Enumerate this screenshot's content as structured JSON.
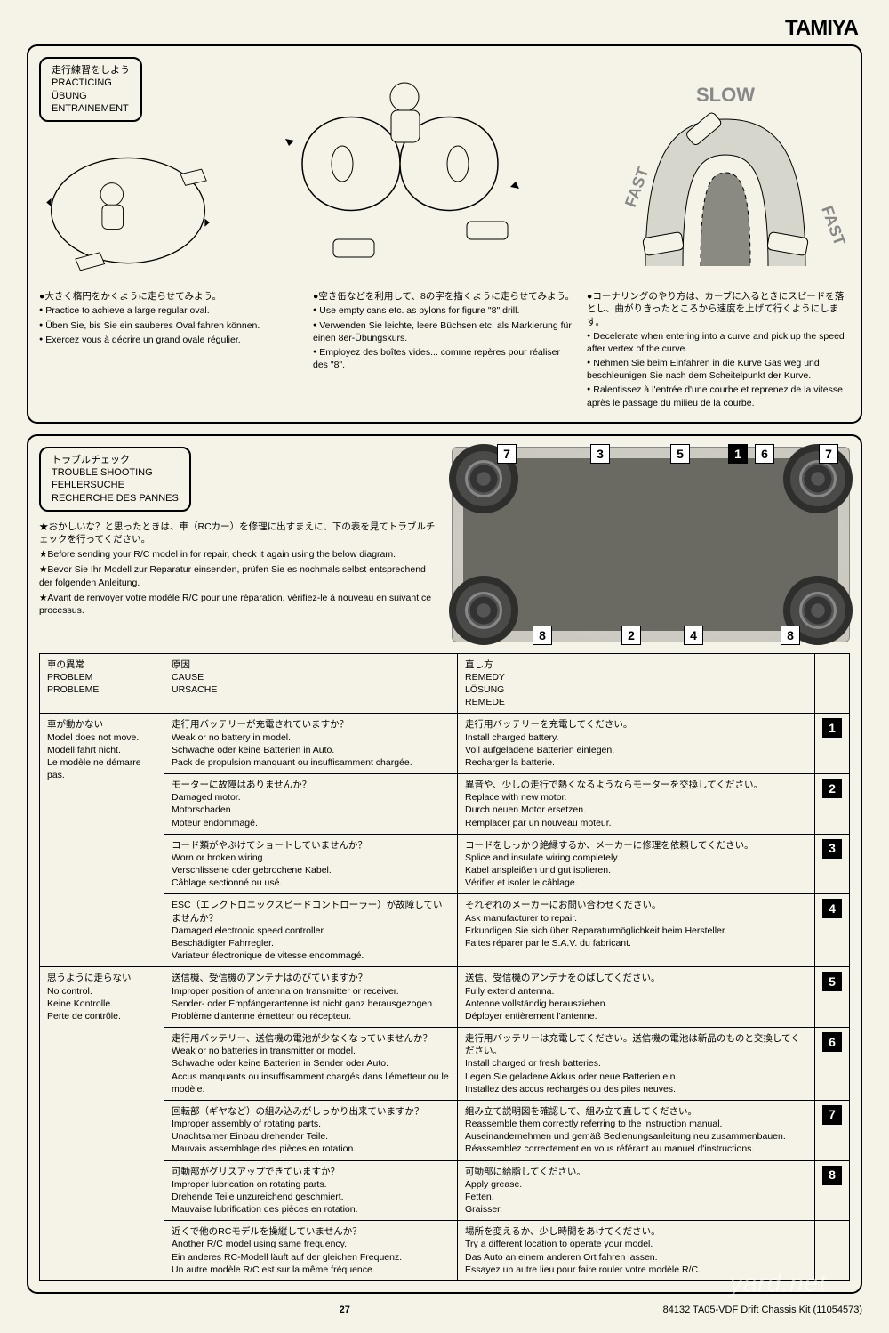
{
  "brand": "TAMIYA",
  "practice": {
    "title_jp": "走行練習をしよう",
    "title_en": "PRACTICING",
    "title_de": "ÜBUNG",
    "title_fr": "ENTRAINEMENT",
    "slow_label": "SLOW",
    "fast_label_l": "FAST",
    "fast_label_r": "FAST",
    "col1": {
      "jp": "●大きく楕円をかくように走らせてみよう。",
      "en": "Practice to achieve a large regular oval.",
      "de": "Üben Sie, bis Sie ein sauberes Oval fahren können.",
      "fr": "Exercez vous à décrire un grand ovale régulier."
    },
    "col2": {
      "jp": "●空き缶などを利用して、8の字を描くように走らせてみよう。",
      "en": "Use empty cans etc. as pylons for figure \"8\" drill.",
      "de": "Verwenden Sie leichte, leere Büchsen etc. als Markierung für einen 8er-Übungskurs.",
      "fr": "Employez des boîtes vides... comme repères pour réaliser des \"8\"."
    },
    "col3": {
      "jp": "●コーナリングのやり方は、カーブに入るときにスピードを落とし、曲がりきったところから速度を上げて行くようにします。",
      "en": "Decelerate when entering into a curve and pick up the speed after vertex of the curve.",
      "de": "Nehmen Sie beim Einfahren in die Kurve Gas weg und beschleunigen Sie nach dem Scheitelpunkt der Kurve.",
      "fr": "Ralentissez à l'entrée d'une courbe et reprenez de la vitesse après le passage du milieu de la courbe."
    }
  },
  "trouble": {
    "title_jp": "トラブルチェック",
    "title_en": "TROUBLE SHOOTING",
    "title_de": "FEHLERSUCHE",
    "title_fr": "RECHERCHE DES PANNES",
    "notes": {
      "jp": "★おかしいな？と思ったときは、車（RCカー）を修理に出すまえに、下の表を見てトラブルチェックを行ってください。",
      "en": "★Before sending your R/C model in for repair, check it again using the below diagram.",
      "de": "★Bevor Sie Ihr Modell zur Reparatur einsenden, prüfen Sie es nochmals selbst entsprechend der folgenden Anleitung.",
      "fr": "★Avant de renvoyer votre modèle R/C pour une réparation, vérifiez-le à nouveau en suivant ce processus."
    },
    "headers": {
      "problem_jp": "車の異常",
      "problem_en": "PROBLEM",
      "problem_fr": "PROBLEME",
      "cause_jp": "原因",
      "cause_en": "CAUSE",
      "cause_de": "URSACHE",
      "remedy_jp": "直し方",
      "remedy_en": "REMEDY",
      "remedy_de": "LÖSUNG",
      "remedy_fr": "REMEDE"
    },
    "p1": {
      "jp": "車が動かない",
      "en": "Model does not move.",
      "de": "Modell fährt nicht.",
      "fr": "Le modèle ne démarre pas."
    },
    "p2": {
      "jp": "思うように走らない",
      "en": "No control.",
      "de": "Keine Kontrolle.",
      "fr": "Perte de contrôle."
    },
    "rows": [
      {
        "c_jp": "走行用バッテリーが充電されていますか？",
        "c_en": "Weak or no battery in model.",
        "c_de": "Schwache oder keine Batterien in Auto.",
        "c_fr": "Pack de propulsion manquant ou insuffisamment chargée.",
        "r_jp": "走行用バッテリーを充電してください。",
        "r_en": "Install charged battery.",
        "r_de": "Voll aufgeladene Batterien einlegen.",
        "r_fr": "Recharger la batterie.",
        "n": "1"
      },
      {
        "c_jp": "モーターに故障はありませんか？",
        "c_en": "Damaged motor.",
        "c_de": "Motorschaden.",
        "c_fr": "Moteur endommagé.",
        "r_jp": "異音や、少しの走行で熱くなるようならモーターを交換してください。",
        "r_en": "Replace with new motor.",
        "r_de": "Durch neuen Motor ersetzen.",
        "r_fr": "Remplacer par un nouveau moteur.",
        "n": "2"
      },
      {
        "c_jp": "コード類がやぶけてショートしていませんか？",
        "c_en": "Worn or broken wiring.",
        "c_de": "Verschlissene oder gebrochene Kabel.",
        "c_fr": "Câblage sectionné ou usé.",
        "r_jp": "コードをしっかり絶縁するか、メーカーに修理を依頼してください。",
        "r_en": "Splice and insulate wiring completely.",
        "r_de": "Kabel anspleißen und gut isolieren.",
        "r_fr": "Vérifier et isoler le câblage.",
        "n": "3"
      },
      {
        "c_jp": "ESC（エレクトロニックスピードコントローラー）が故障していませんか？",
        "c_en": "Damaged electronic speed controller.",
        "c_de": "Beschädigter Fahrregler.",
        "c_fr": "Variateur électronique de vitesse endommagé.",
        "r_jp": "それぞれのメーカーにお問い合わせください。",
        "r_en": "Ask manufacturer to repair.",
        "r_de": "Erkundigen Sie sich über Reparaturmöglichkeit beim Hersteller.",
        "r_fr": "Faites réparer par le S.A.V. du fabricant.",
        "n": "4"
      },
      {
        "c_jp": "送信機、受信機のアンテナはのびていますか？",
        "c_en": "Improper position of antenna on transmitter or receiver.",
        "c_de": "Sender- oder Empfängerantenne ist nicht ganz herausgezogen.",
        "c_fr": "Problème d'antenne émetteur ou récepteur.",
        "r_jp": "送信、受信機のアンテナをのばしてください。",
        "r_en": "Fully extend antenna.",
        "r_de": "Antenne vollständig herausziehen.",
        "r_fr": "Déployer entièrement l'antenne.",
        "n": "5"
      },
      {
        "c_jp": "走行用バッテリー、送信機の電池が少なくなっていませんか？",
        "c_en": "Weak or no batteries in transmitter or model.",
        "c_de": "Schwache oder keine Batterien in Sender oder Auto.",
        "c_fr": "Accus manquants ou insuffisamment chargés dans l'émetteur ou le modèle.",
        "r_jp": "走行用バッテリーは充電してください。送信機の電池は新品のものと交換してください。",
        "r_en": "Install charged or fresh batteries.",
        "r_de": "Legen Sie geladene Akkus oder neue Batterien ein.",
        "r_fr": "Installez des accus rechargés ou des piles neuves.",
        "n": "6"
      },
      {
        "c_jp": "回転部（ギヤなど）の組み込みがしっかり出来ていますか？",
        "c_en": "Improper assembly of rotating parts.",
        "c_de": "Unachtsamer Einbau drehender Teile.",
        "c_fr": "Mauvais assemblage des pièces en rotation.",
        "r_jp": "組み立て説明図を確認して、組み立て直してください。",
        "r_en": "Reassemble them correctly referring to the instruction manual.",
        "r_de": "Auseinandernehmen und gemäß Bedienungsanleitung neu zusammenbauen.",
        "r_fr": "Réassemblez correctement en vous référant au manuel d'instructions.",
        "n": "7"
      },
      {
        "c_jp": "可動部がグリスアップできていますか？",
        "c_en": "Improper lubrication on rotating parts.",
        "c_de": "Drehende Teile unzureichend geschmiert.",
        "c_fr": "Mauvaise lubrification des pièces en rotation.",
        "r_jp": "可動部に給脂してください。",
        "r_en": "Apply grease.",
        "r_de": "Fetten.",
        "r_fr": "Graisser.",
        "n": "8"
      },
      {
        "c_jp": "近くで他のRCモデルを操縦していませんか？",
        "c_en": "Another R/C model using same frequency.",
        "c_de": "Ein anderes RC-Modell läuft auf der gleichen Frequenz.",
        "c_fr": "Un autre modèle R/C est sur la même fréquence.",
        "r_jp": "場所を変えるか、少し時間をあけてください。",
        "r_en": "Try a different location to operate your model.",
        "r_de": "Das Auto an einem anderen Ort fahren lassen.",
        "r_fr": "Essayez un autre lieu pour faire rouler votre modèle R/C.",
        "n": ""
      }
    ],
    "callouts": [
      "7",
      "3",
      "5",
      "1",
      "6",
      "7",
      "8",
      "2",
      "4",
      "8"
    ]
  },
  "footer": {
    "page": "27",
    "code": "84132 TA05-VDF Drift Chassis Kit (11054573)"
  },
  "watermark": "yard.net"
}
